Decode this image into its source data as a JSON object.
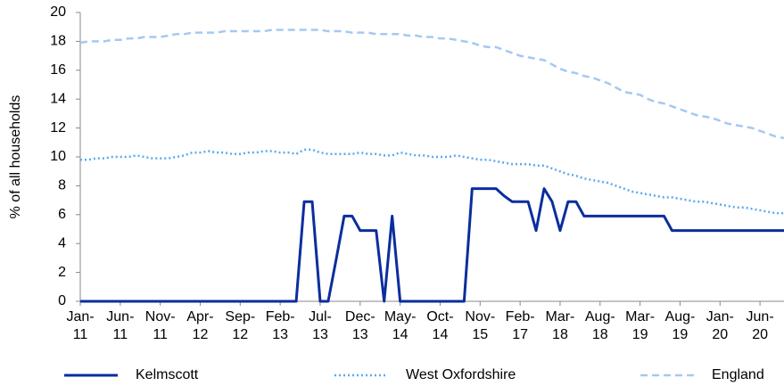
{
  "chart_data": {
    "type": "line",
    "y_label": "% of all households",
    "categories": [
      "Jan-11",
      null,
      null,
      null,
      null,
      "Jun-11",
      null,
      null,
      null,
      null,
      "Nov-11",
      null,
      null,
      null,
      null,
      "Apr-12",
      null,
      null,
      null,
      null,
      "Sep-12",
      null,
      null,
      null,
      null,
      "Feb-13",
      null,
      null,
      null,
      null,
      "Jul-13",
      null,
      null,
      null,
      null,
      "Dec-13",
      null,
      null,
      null,
      null,
      "May-14",
      null,
      null,
      null,
      null,
      "Oct-14",
      null,
      null,
      null,
      null,
      "Nov-15",
      null,
      null,
      null,
      null,
      "Feb-17",
      null,
      null,
      null,
      null,
      "Mar-18",
      null,
      null,
      null,
      null,
      "Aug-18",
      null,
      null,
      null,
      null,
      "Mar-19",
      null,
      null,
      null,
      null,
      "Aug-19",
      null,
      null,
      null,
      null,
      "Jan-20",
      null,
      null,
      null,
      null,
      "Jun-20",
      null,
      null,
      null
    ],
    "series": [
      {
        "name": "Kelmscott",
        "color": "#0b2d9e",
        "linestyle": "solid",
        "values": [
          0,
          0,
          0,
          0,
          0,
          0,
          0,
          0,
          0,
          0,
          0,
          0,
          0,
          0,
          0,
          0,
          0,
          0,
          0,
          0,
          0,
          0,
          0,
          0,
          0,
          0,
          0,
          0,
          6.9,
          6.9,
          0,
          0,
          2.9,
          5.9,
          5.9,
          4.9,
          4.9,
          4.9,
          0,
          5.9,
          0,
          0,
          0,
          0,
          0,
          0,
          0,
          0,
          0,
          7.8,
          7.8,
          7.8,
          7.8,
          7.3,
          6.9,
          6.9,
          6.9,
          4.9,
          7.8,
          6.9,
          4.9,
          6.9,
          6.9,
          5.9,
          5.9,
          5.9,
          5.9,
          5.9,
          5.9,
          5.9,
          5.9,
          5.9,
          5.9,
          5.9,
          4.9,
          4.9,
          4.9,
          4.9,
          4.9,
          4.9,
          4.9,
          4.9,
          4.9,
          4.9,
          4.9,
          4.9,
          4.9,
          4.9,
          4.9
        ]
      },
      {
        "name": "West Oxfordshire",
        "color": "#5aaaf0",
        "linestyle": "dotted",
        "values": [
          9.8,
          9.8,
          9.9,
          9.9,
          10.0,
          10.0,
          10.0,
          10.1,
          10.0,
          9.9,
          9.9,
          9.9,
          10.0,
          10.1,
          10.3,
          10.3,
          10.4,
          10.3,
          10.3,
          10.2,
          10.2,
          10.3,
          10.3,
          10.4,
          10.4,
          10.3,
          10.3,
          10.2,
          10.5,
          10.5,
          10.3,
          10.2,
          10.2,
          10.2,
          10.2,
          10.3,
          10.2,
          10.2,
          10.1,
          10.1,
          10.3,
          10.2,
          10.1,
          10.1,
          10.0,
          10.0,
          10.0,
          10.1,
          10.0,
          9.9,
          9.8,
          9.8,
          9.7,
          9.6,
          9.5,
          9.5,
          9.5,
          9.4,
          9.4,
          9.2,
          9.0,
          8.8,
          8.7,
          8.5,
          8.4,
          8.3,
          8.2,
          8.0,
          7.8,
          7.6,
          7.5,
          7.4,
          7.3,
          7.2,
          7.2,
          7.1,
          7.0,
          6.9,
          6.9,
          6.8,
          6.7,
          6.6,
          6.5,
          6.5,
          6.4,
          6.3,
          6.2,
          6.1,
          6.1
        ]
      },
      {
        "name": "England",
        "color": "#a4c9f2",
        "linestyle": "dashed",
        "values": [
          17.9,
          18.0,
          18.0,
          18.0,
          18.1,
          18.1,
          18.2,
          18.2,
          18.3,
          18.3,
          18.3,
          18.4,
          18.5,
          18.5,
          18.6,
          18.6,
          18.6,
          18.6,
          18.7,
          18.7,
          18.7,
          18.7,
          18.7,
          18.7,
          18.8,
          18.8,
          18.8,
          18.8,
          18.8,
          18.8,
          18.8,
          18.7,
          18.7,
          18.7,
          18.6,
          18.6,
          18.6,
          18.5,
          18.5,
          18.5,
          18.5,
          18.4,
          18.4,
          18.3,
          18.3,
          18.2,
          18.2,
          18.1,
          18.0,
          17.9,
          17.7,
          17.6,
          17.6,
          17.4,
          17.2,
          17.0,
          16.9,
          16.8,
          16.7,
          16.4,
          16.1,
          15.9,
          15.8,
          15.6,
          15.5,
          15.3,
          15.1,
          14.8,
          14.5,
          14.4,
          14.3,
          14.0,
          13.8,
          13.7,
          13.5,
          13.3,
          13.1,
          12.9,
          12.8,
          12.7,
          12.5,
          12.3,
          12.2,
          12.1,
          12.0,
          11.8,
          11.6,
          11.4,
          11.3
        ]
      }
    ],
    "ylim": [
      0,
      20
    ],
    "yticks": [
      0,
      2,
      4,
      6,
      8,
      10,
      12,
      14,
      16,
      18,
      20
    ],
    "legend": "bottom"
  }
}
